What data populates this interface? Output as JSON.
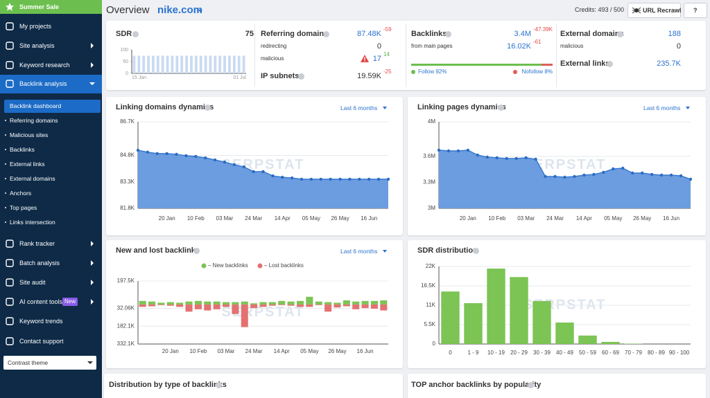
{
  "sidebar": {
    "promo": "Summer Sale",
    "menu": [
      {
        "label": "My projects"
      },
      {
        "label": "Site analysis"
      },
      {
        "label": "Keyword research"
      },
      {
        "label": "Backlink analysis"
      },
      {
        "label": "Rank tracker"
      },
      {
        "label": "Batch analysis"
      },
      {
        "label": "Site audit"
      },
      {
        "label": "AI content tools",
        "badge": "New"
      },
      {
        "label": "Keyword trends"
      },
      {
        "label": "Contact support"
      }
    ],
    "submenu": [
      "Backlink dashboard",
      "Referring domains",
      "Malicious sites",
      "Backlinks",
      "External links",
      "External domains",
      "Anchors",
      "Top pages",
      "Links intersection"
    ],
    "theme": "Contrast theme"
  },
  "header": {
    "title": "Overview",
    "domain": "nike.com",
    "credits": "Credits: 493 / 500",
    "recrawl": "URL Recrawl",
    "help": "?"
  },
  "watermark": "SERPSTAT",
  "stats": {
    "sdr": {
      "label": "SDR",
      "value": "75"
    },
    "referring_domains": {
      "label": "Referring domains",
      "value": "87.48K",
      "delta": "-59"
    },
    "redirecting": {
      "label": "redirecting",
      "value": "0"
    },
    "malicious": {
      "label": "malicious",
      "value": "17",
      "delta": "14"
    },
    "ip_subnets": {
      "label": "IP subnets",
      "value": "19.59K",
      "delta": "-25"
    },
    "backlinks": {
      "label": "Backlinks",
      "value": "3.4M",
      "delta": "-47.39K"
    },
    "from_main_pages": {
      "label": "from main pages",
      "value": "16.02K",
      "delta": "-61"
    },
    "follow": {
      "label": "Follow 92%",
      "value": 92,
      "color": "#6cbf4e"
    },
    "nofollow": {
      "label": "Nofollow 8%",
      "value": 8,
      "color": "#e25b5b"
    },
    "external_domains": {
      "label": "External domains",
      "value": "188"
    },
    "external_malicious": {
      "label": "malicious",
      "value": "0"
    },
    "external_links": {
      "label": "External links",
      "value": "235.7K"
    }
  },
  "charts": [
    {
      "type": "bar",
      "color": "#c9dbf2",
      "categories": [
        "15 Jan",
        null,
        null,
        null,
        null,
        null,
        null,
        null,
        null,
        null,
        null,
        null,
        null,
        null,
        null,
        null,
        null,
        null,
        null,
        null,
        null,
        null,
        null,
        "01 Jul"
      ],
      "values": [
        75,
        75,
        75,
        75,
        75,
        75,
        75,
        75,
        75,
        75,
        75,
        75,
        75,
        75,
        75,
        75,
        75,
        75,
        75,
        75,
        75,
        75,
        75,
        75
      ],
      "ylim": [
        0,
        100
      ],
      "yticks": [
        0,
        50,
        100
      ]
    },
    {
      "type": "area",
      "title": "Linking domains dynamics",
      "period": "Last 6 months",
      "color": "#6b9de0",
      "grid": true,
      "categories": [
        null,
        null,
        null,
        "20 Jan",
        null,
        null,
        "10 Feb",
        null,
        null,
        "03 Mar",
        null,
        null,
        "24 Mar",
        null,
        null,
        "14 Apr",
        null,
        null,
        "05 May",
        null,
        null,
        "26 May",
        null,
        null,
        "16 Jun",
        null,
        null
      ],
      "values": [
        85090,
        84980,
        84900,
        84900,
        84860,
        84780,
        84740,
        84660,
        84540,
        84420,
        84270,
        84150,
        83880,
        83880,
        83640,
        83560,
        83520,
        83450,
        83450,
        83450,
        83450,
        83450,
        83450,
        83450,
        83450,
        83450,
        83450
      ],
      "ylim": [
        81800,
        86700
      ],
      "yticks": [
        {
          "value": 81800,
          "label": "81.8K"
        },
        {
          "value": 83300,
          "label": "83.3K"
        },
        {
          "value": 84800,
          "label": "84.8K"
        },
        {
          "value": 86700,
          "label": "86.7K"
        }
      ]
    },
    {
      "type": "area",
      "title": "Linking pages dynamics",
      "period": "Last 6 months",
      "color": "#6b9de0",
      "grid": true,
      "categories": [
        null,
        null,
        null,
        "20 Jan",
        null,
        null,
        "10 Feb",
        null,
        null,
        "03 Mar",
        null,
        null,
        "24 Mar",
        null,
        null,
        "14 Apr",
        null,
        null,
        "05 May",
        null,
        null,
        "26 May",
        null,
        null,
        "16 Jun",
        null,
        null
      ],
      "values": [
        3672000,
        3664000,
        3664000,
        3672000,
        3616000,
        3592000,
        3584000,
        3576000,
        3576000,
        3584000,
        3568000,
        3368000,
        3368000,
        3360000,
        3368000,
        3384000,
        3392000,
        3416000,
        3456000,
        3464000,
        3408000,
        3408000,
        3392000,
        3384000,
        3384000,
        3376000,
        3336000
      ],
      "ylim": [
        3000000,
        4000000
      ],
      "yticks": [
        {
          "value": 3000000,
          "label": "3M"
        },
        {
          "value": 3300000,
          "label": "3.3M"
        },
        {
          "value": 3600000,
          "label": "3.6M"
        },
        {
          "value": 4000000,
          "label": "4M"
        }
      ]
    },
    {
      "type": "bar",
      "title": "New and lost backlinks",
      "period": "Last 6 months",
      "grid": true,
      "categories": [
        null,
        null,
        null,
        "20 Jan",
        null,
        null,
        "10 Feb",
        null,
        null,
        "03 Mar",
        null,
        null,
        "24 Mar",
        null,
        null,
        "14 Apr",
        null,
        null,
        "05 May",
        null,
        null,
        "26 May",
        null,
        null,
        "16 Jun",
        null,
        null
      ],
      "series": [
        {
          "name": "– New backlinks",
          "color": "#7cc454",
          "values": [
            30000,
            25000,
            15000,
            20000,
            15000,
            25000,
            30000,
            25000,
            25000,
            20000,
            20000,
            25000,
            10000,
            20000,
            20000,
            30000,
            25000,
            30000,
            65000,
            25000,
            20000,
            15000,
            35000,
            25000,
            30000,
            30000,
            35000
          ]
        },
        {
          "name": "– Lost backlinks",
          "color": "#e47171",
          "values": [
            -20000,
            -15000,
            -5000,
            -10000,
            -20000,
            -60000,
            -40000,
            -50000,
            -40000,
            -20000,
            -80000,
            -190000,
            -30000,
            -20000,
            -10000,
            -5000,
            -10000,
            -20000,
            -20000,
            -5000,
            -60000,
            -25000,
            -15000,
            -40000,
            -30000,
            -35000,
            -50000
          ]
        }
      ],
      "ylim": [
        -332100,
        197500
      ],
      "yticks": [
        {
          "value": -332100,
          "label": "332.1K"
        },
        {
          "value": -182100,
          "label": "182.1K"
        },
        {
          "value": -32060,
          "label": "32.06K"
        },
        {
          "value": 197500,
          "label": "197.5K"
        }
      ]
    },
    {
      "type": "bar",
      "title": "SDR distribution",
      "color": "#7cc454",
      "grid": true,
      "categories": [
        "0",
        "1 - 9",
        "10 - 19",
        "20 - 29",
        "30 - 39",
        "40 - 49",
        "50 - 59",
        "60 - 69",
        "70 - 79",
        "80 - 89",
        "90 - 100"
      ],
      "values": [
        14900,
        11600,
        21400,
        19000,
        12200,
        6100,
        2400,
        600,
        100,
        0,
        0
      ],
      "ylim": [
        0,
        22000
      ],
      "yticks": [
        0,
        {
          "value": 5500,
          "label": "5.5K"
        },
        {
          "value": 11000,
          "label": "11K"
        },
        {
          "value": 16500,
          "label": "16.5K"
        },
        {
          "value": 22000,
          "label": "22K"
        }
      ]
    }
  ],
  "bottom": {
    "left": "Distribution by type of backlinks",
    "right": "TOP anchor backlinks by popularity"
  }
}
